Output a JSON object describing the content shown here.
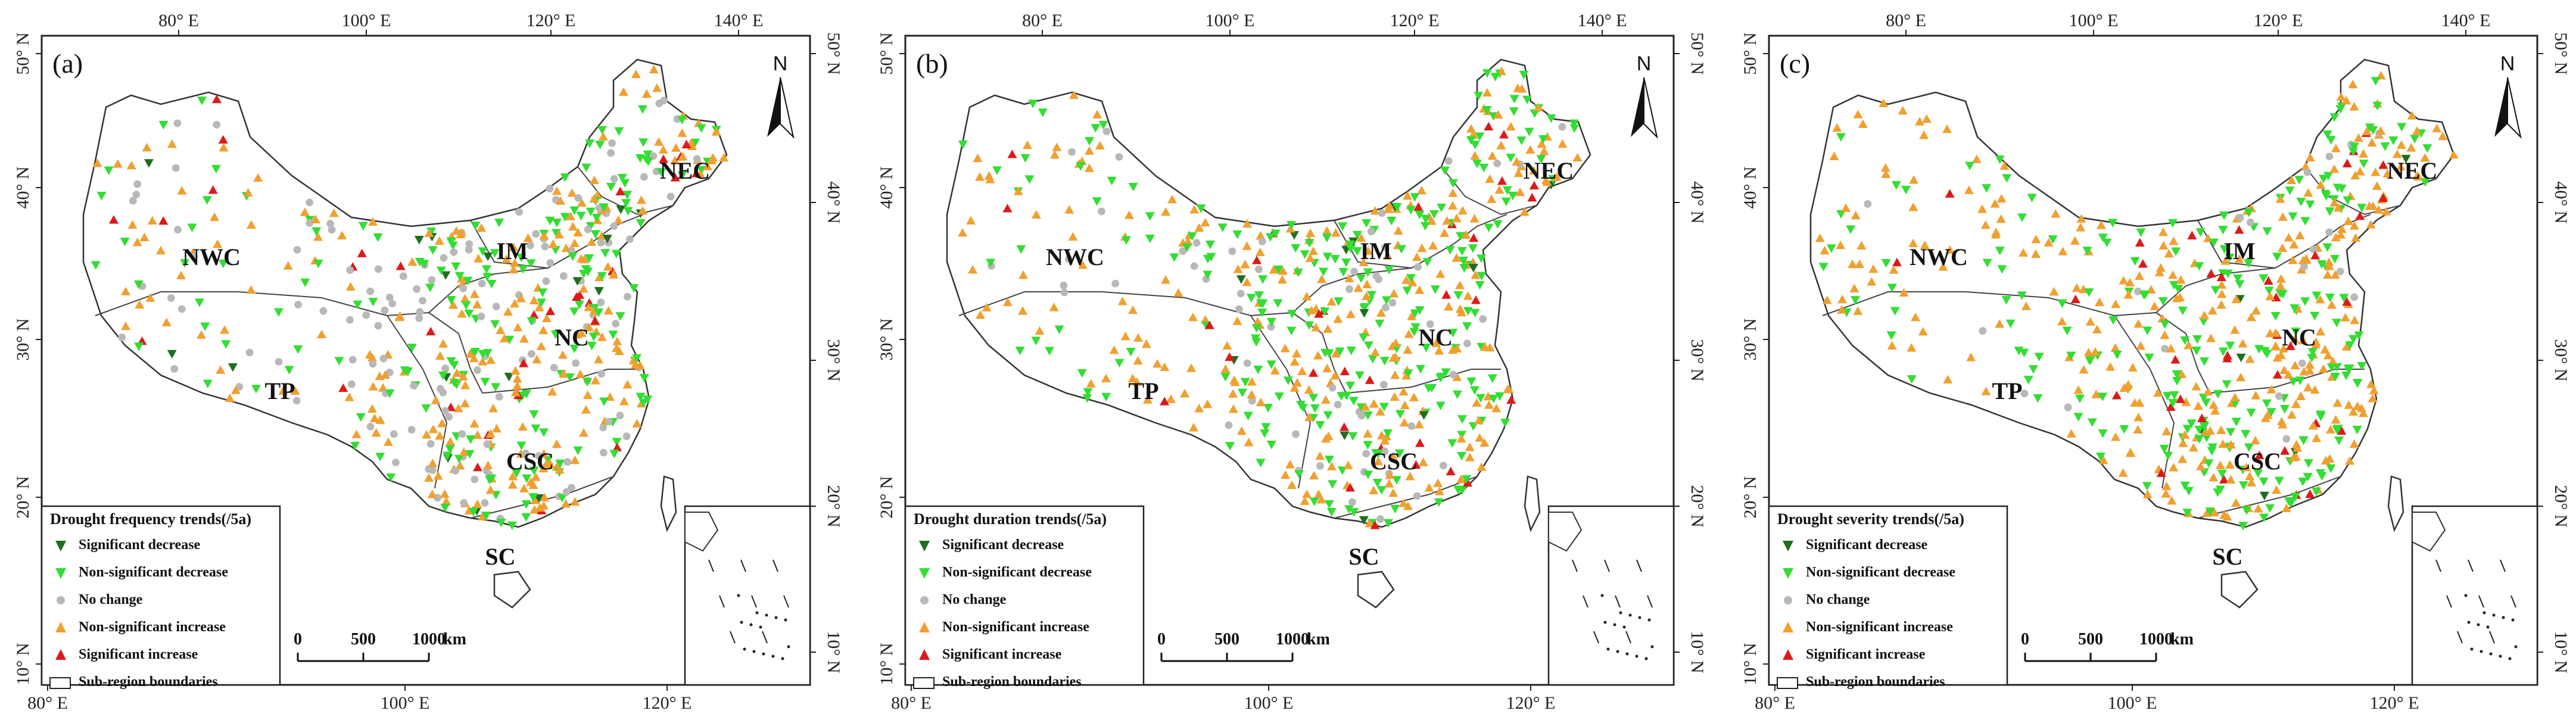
{
  "figure": {
    "ticks": {
      "top": [
        "80° E",
        "100° E",
        "120° E",
        "140° E"
      ],
      "bottom": [
        "80° E",
        "100° E",
        "120° E"
      ],
      "left": [
        "10° N",
        "20° N",
        "30° N",
        "40° N",
        "50° N"
      ],
      "right": [
        "10° N",
        "20° N",
        "30° N",
        "40° N",
        "50° N"
      ]
    },
    "regions": [
      "NWC",
      "IM",
      "NEC",
      "NC",
      "TP",
      "CSC",
      "SC"
    ],
    "north_label": "N",
    "scale": {
      "ticks": [
        "0",
        "500",
        "1000"
      ],
      "unit": "km"
    },
    "legend_items": [
      "Significant decrease",
      "Non-significant decrease",
      "No change",
      "Non-significant increase",
      "Significant increase",
      "Sub-region boundaries"
    ],
    "colors": {
      "significant_decrease": "#1f6e1f",
      "nonsignificant_decrease": "#33dd33",
      "no_change": "#b8b8b8",
      "nonsignificant_increase": "#f0a030",
      "significant_increase": "#dd1a1a"
    },
    "panels": [
      {
        "label": "(a)",
        "legend_title": "Drought frequency trends(/5a)",
        "mix": [
          0.03,
          0.3,
          0.22,
          0.39,
          0.06
        ]
      },
      {
        "label": "(b)",
        "legend_title": "Drought duration trends(/5a)",
        "mix": [
          0.02,
          0.38,
          0.08,
          0.47,
          0.05
        ]
      },
      {
        "label": "(c)",
        "legend_title": "Drought severity trends(/5a)",
        "mix": [
          0.01,
          0.37,
          0.04,
          0.52,
          0.06
        ]
      }
    ]
  }
}
